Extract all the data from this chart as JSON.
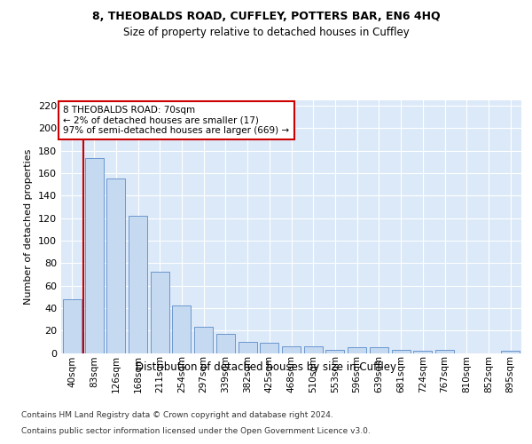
{
  "title1": "8, THEOBALDS ROAD, CUFFLEY, POTTERS BAR, EN6 4HQ",
  "title2": "Size of property relative to detached houses in Cuffley",
  "xlabel": "Distribution of detached houses by size in Cuffley",
  "ylabel": "Number of detached properties",
  "categories": [
    "40sqm",
    "83sqm",
    "126sqm",
    "168sqm",
    "211sqm",
    "254sqm",
    "297sqm",
    "339sqm",
    "382sqm",
    "425sqm",
    "468sqm",
    "510sqm",
    "553sqm",
    "596sqm",
    "639sqm",
    "681sqm",
    "724sqm",
    "767sqm",
    "810sqm",
    "852sqm",
    "895sqm"
  ],
  "bar_values": [
    48,
    173,
    155,
    122,
    72,
    42,
    23,
    17,
    10,
    9,
    6,
    6,
    3,
    5,
    5,
    3,
    2,
    3,
    0,
    0,
    2
  ],
  "bar_color": "#c5d9f1",
  "bar_edge_color": "#5b8cc8",
  "annotation_border_color": "#cc0000",
  "vertical_line_color": "#cc0000",
  "annotation_text_line1": "8 THEOBALDS ROAD: 70sqm",
  "annotation_text_line2": "← 2% of detached houses are smaller (17)",
  "annotation_text_line3": "97% of semi-detached houses are larger (669) →",
  "footer1": "Contains HM Land Registry data © Crown copyright and database right 2024.",
  "footer2": "Contains public sector information licensed under the Open Government Licence v3.0.",
  "ylim": [
    0,
    225
  ],
  "yticks": [
    0,
    20,
    40,
    60,
    80,
    100,
    120,
    140,
    160,
    180,
    200,
    220
  ],
  "plot_bg_color": "#dce9f8",
  "fig_bg_color": "#ffffff"
}
